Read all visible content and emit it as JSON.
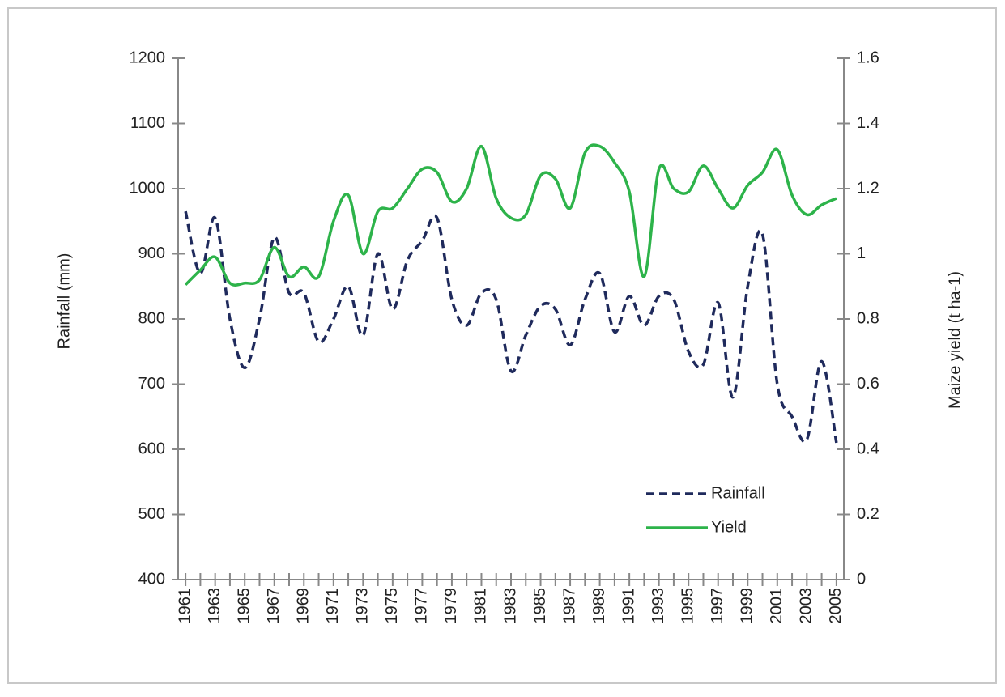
{
  "chart_data": {
    "type": "line",
    "categories": [
      "1961",
      null,
      "1963",
      null,
      "1965",
      null,
      "1967",
      null,
      "1969",
      null,
      "1971",
      null,
      "1973",
      null,
      "1975",
      null,
      "1977",
      null,
      "1979",
      null,
      "1981",
      null,
      "1983",
      null,
      "1985",
      null,
      "1987",
      null,
      "1989",
      null,
      "1991",
      null,
      "1993",
      null,
      "1995",
      null,
      "1997",
      null,
      "1999",
      null,
      "2001",
      null,
      "2003",
      null,
      "2005"
    ],
    "y_label": "Rainfall (mm)",
    "y2_label": "Maize yield (t ha-1)",
    "ylim": [
      400,
      1200
    ],
    "yticks": [
      400,
      500,
      600,
      700,
      800,
      900,
      1000,
      1100,
      1200
    ],
    "y2lim": [
      0,
      1.6
    ],
    "y2ticks": [
      0,
      0.2,
      0.4,
      0.6,
      0.8,
      1,
      1.2,
      1.4,
      1.6
    ],
    "legend": "lower right",
    "series": [
      {
        "name": "Rainfall",
        "color": "#1f2a5c",
        "dashed": true,
        "values": [
          965,
          870,
          955,
          800,
          725,
          800,
          925,
          840,
          840,
          765,
          800,
          850,
          775,
          900,
          815,
          890,
          920,
          955,
          830,
          790,
          840,
          830,
          720,
          775,
          820,
          815,
          760,
          830,
          870,
          780,
          835,
          790,
          835,
          830,
          750,
          730,
          825,
          680,
          850,
          930,
          700,
          650,
          615,
          735,
          610
        ]
      },
      {
        "name": "Yield",
        "color": "#2db34a",
        "axis": "y2",
        "values": [
          0.905,
          0.95,
          0.99,
          0.91,
          0.91,
          0.92,
          1.02,
          0.93,
          0.96,
          0.93,
          1.1,
          1.18,
          1.0,
          1.13,
          1.14,
          1.2,
          1.26,
          1.25,
          1.16,
          1.2,
          1.33,
          1.17,
          1.11,
          1.12,
          1.24,
          1.23,
          1.14,
          1.31,
          1.33,
          1.28,
          1.19,
          0.93,
          1.26,
          1.2,
          1.19,
          1.27,
          1.2,
          1.14,
          1.21,
          1.25,
          1.32,
          1.18,
          1.12,
          1.15,
          1.17
        ]
      }
    ]
  }
}
